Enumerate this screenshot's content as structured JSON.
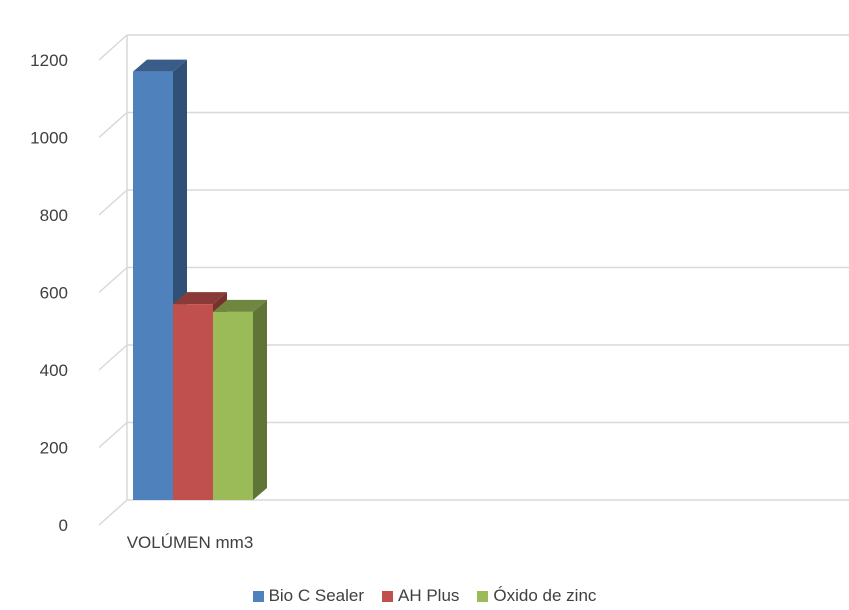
{
  "chart_data": {
    "type": "bar",
    "style": "3d-clustered-column",
    "categories": [
      "VOLÚMEN mm3"
    ],
    "series": [
      {
        "name": "Bio C Sealer",
        "values": [
          1170
        ],
        "color": "#4F81BD"
      },
      {
        "name": "AH Plus",
        "values": [
          570
        ],
        "color": "#C0504D"
      },
      {
        "name": "Óxido de zinc",
        "values": [
          550
        ],
        "color": "#9BBB59"
      }
    ],
    "ylim": [
      0,
      1200
    ],
    "yticks": [
      "0",
      "200",
      "400",
      "600",
      "800",
      "1000",
      "1200"
    ],
    "grid": true,
    "legend": "bottom"
  }
}
